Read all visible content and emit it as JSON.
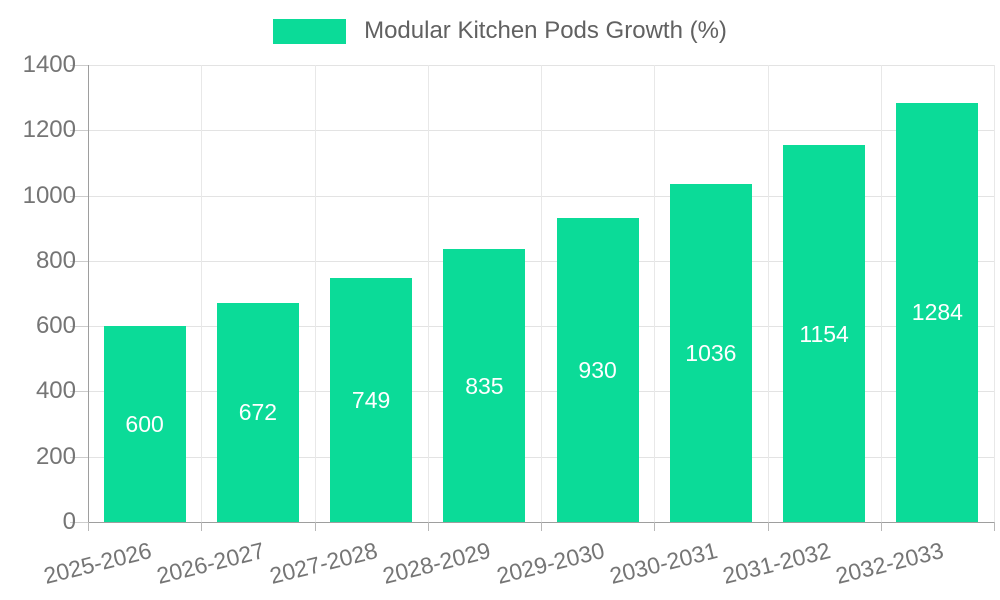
{
  "legend": {
    "label": "Modular Kitchen Pods Growth (%)"
  },
  "colors": {
    "bar": "#0bdb98",
    "bar_label": "#ffffff",
    "axis_line": "#9e9e9e",
    "h_gridline": "#e3e3e3",
    "v_gridline": "#e8e8e8",
    "tick_mark": "#cccccc",
    "x_tick_mark": "#b8b8b8",
    "tick_label": "#757575",
    "legend_text": "#616161",
    "background": "#ffffff"
  },
  "chart_data": {
    "type": "bar",
    "title": "Modular Kitchen Pods Growth (%)",
    "categories": [
      "2025-2026",
      "2026-2027",
      "2027-2028",
      "2028-2029",
      "2029-2030",
      "2030-2031",
      "2031-2032",
      "2032-2033"
    ],
    "values": [
      600,
      672,
      749,
      835,
      930,
      1036,
      1154,
      1284
    ],
    "value_labels": [
      "600",
      "672",
      "749",
      "835",
      "930",
      "1036",
      "1154",
      "1284"
    ],
    "xlabel": "",
    "ylabel": "",
    "ylim": [
      0,
      1400
    ],
    "yticks": [
      0,
      200,
      400,
      600,
      800,
      1000,
      1200,
      1400
    ],
    "grid": true,
    "legend_position": "top-center",
    "value_label_position": "inside-center",
    "x_label_rotation_deg": -14
  }
}
